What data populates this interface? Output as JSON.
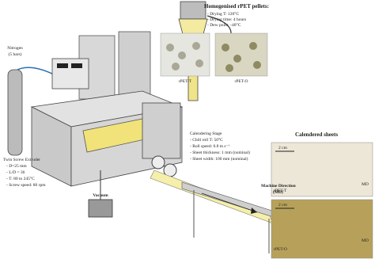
{
  "pellets": {
    "title": "Homogenised rPET pellets:",
    "lines": [
      "- Drying T: 120°C",
      "- Drying time: 4 hours",
      "- Dew point: -40°C"
    ],
    "labels": [
      "rPET-T",
      "rPET-O"
    ]
  },
  "nitrogen": {
    "label": "Nitrogen",
    "pressure": "(5 bars)"
  },
  "calendering": {
    "title": "Calendering Stage",
    "lines": [
      "- Chill roll T: 50°C",
      "- Roll speed: 0.8 m s⁻¹",
      "- Sheet thickness: 1 mm (nominal)",
      "- Sheet width: 100 mm (nominal)"
    ]
  },
  "direction": {
    "line1": "Machine Direction",
    "line2": "(MD)"
  },
  "sheets": {
    "title": "Calendered sheets",
    "items": [
      {
        "scale": "2 cm",
        "md": "MD",
        "label": "rPET-T"
      },
      {
        "scale": "2 cm",
        "md": "MD",
        "label": "rPET-O"
      }
    ]
  },
  "extruder": {
    "title": "Twin Screw Extruder",
    "lines": [
      "- D=25 mm",
      "- L/D = 36",
      "- T: 80 to 245°C",
      "- Screw speed: 80 rpm"
    ]
  },
  "vacuum": {
    "label": "Vacuum"
  }
}
